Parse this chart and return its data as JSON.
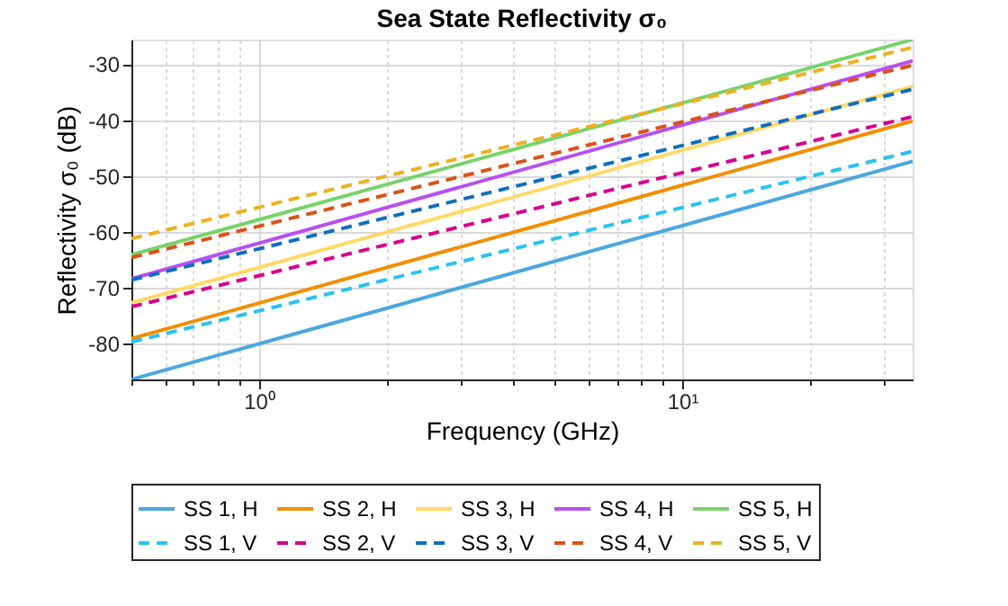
{
  "chart_data": {
    "type": "line",
    "title": "Sea State Reflectivity σ₀",
    "xlabel": "Frequency (GHz)",
    "ylabel": "Reflectivity σ₀ (dB)",
    "x": [
      0.5,
      35
    ],
    "series": [
      {
        "name": "SS 1, H",
        "color": "#4aa8e0",
        "line_style": "solid",
        "values": [
          -86.4,
          -47.4
        ]
      },
      {
        "name": "SS 2, H",
        "color": "#f28e00",
        "line_style": "solid",
        "values": [
          -79.1,
          -40.2
        ]
      },
      {
        "name": "SS 3, H",
        "color": "#ffd966",
        "line_style": "solid",
        "values": [
          -72.7,
          -34.0
        ]
      },
      {
        "name": "SS 4, H",
        "color": "#b84ff0",
        "line_style": "solid",
        "values": [
          -68.4,
          -29.4
        ]
      },
      {
        "name": "SS 5, H",
        "color": "#77d36a",
        "line_style": "solid",
        "values": [
          -64.1,
          -25.6
        ]
      },
      {
        "name": "SS 1, V",
        "color": "#29c2f0",
        "line_style": "dashed",
        "values": [
          -79.7,
          -45.6
        ]
      },
      {
        "name": "SS 2, V",
        "color": "#d6008f",
        "line_style": "dashed",
        "values": [
          -73.4,
          -39.4
        ]
      },
      {
        "name": "SS 3, V",
        "color": "#0f6ebf",
        "line_style": "dashed",
        "values": [
          -68.6,
          -34.5
        ]
      },
      {
        "name": "SS 4, V",
        "color": "#d95319",
        "line_style": "dashed",
        "values": [
          -64.6,
          -30.2
        ]
      },
      {
        "name": "SS 5, V",
        "color": "#edb120",
        "line_style": "dashed",
        "values": [
          -61.2,
          -27.0
        ]
      }
    ],
    "log": "x",
    "xlim": [
      0.5,
      35
    ],
    "ylim": [
      -86.4,
      -25.6
    ],
    "xticks": [
      {
        "value": 0.5,
        "label": null
      },
      {
        "value": 0.6,
        "label": null
      },
      {
        "value": 0.7,
        "label": null
      },
      {
        "value": 0.8,
        "label": null
      },
      {
        "value": 0.9,
        "label": null
      },
      {
        "value": 1,
        "label": "10⁰"
      },
      {
        "value": 2,
        "label": null
      },
      {
        "value": 3,
        "label": null
      },
      {
        "value": 4,
        "label": null
      },
      {
        "value": 5,
        "label": null
      },
      {
        "value": 6,
        "label": null
      },
      {
        "value": 7,
        "label": null
      },
      {
        "value": 8,
        "label": null
      },
      {
        "value": 9,
        "label": null
      },
      {
        "value": 10,
        "label": "10¹"
      },
      {
        "value": 20,
        "label": null
      },
      {
        "value": 30,
        "label": null
      }
    ],
    "yticks": [
      -80,
      -70,
      -60,
      -50,
      -40,
      -30
    ],
    "grid": true,
    "legend": "bottom",
    "marker": "none"
  }
}
